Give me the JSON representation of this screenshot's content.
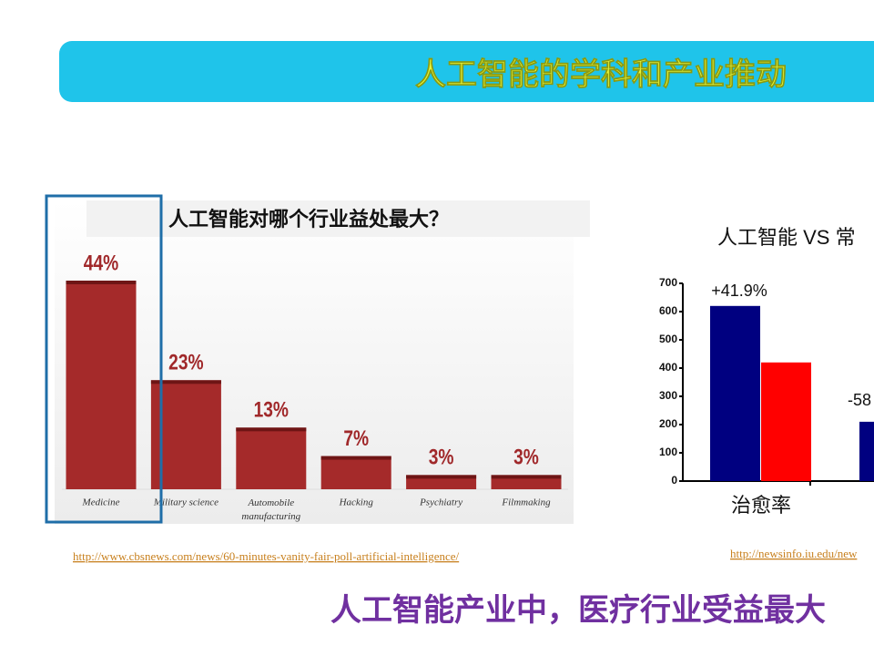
{
  "slide": {
    "title": "人工智能的学科和产业推动",
    "links": [
      "http://www.cbsnews.com/news/60-minutes-vanity-fair-poll-artificial-intelligence/",
      "http://newsinfo.iu.edu/new"
    ],
    "caption": "人工智能产业中，医疗行业受益最大"
  },
  "chart_data": [
    {
      "type": "bar",
      "title": "人工智能对哪个行业益处最大？",
      "categories": [
        "Medicine",
        "Military science",
        "Automobile manufacturing",
        "Hacking",
        "Psychiatry",
        "Filmmaking"
      ],
      "values": [
        44,
        23,
        13,
        7,
        3,
        3
      ],
      "value_labels": [
        "44%",
        "23%",
        "13%",
        "7%",
        "3%",
        "3%"
      ],
      "color": "#a52a2a"
    },
    {
      "type": "bar",
      "title": "人工智能 VS 常",
      "categories": [
        "治愈率",
        null
      ],
      "series": [
        {
          "color": "#000080",
          "values": [
            620,
            210
          ]
        },
        {
          "color": "#ff0000",
          "values": [
            420,
            null
          ]
        }
      ],
      "annotations": [
        "+41.9%",
        "-58"
      ],
      "ylim": [
        0,
        700
      ],
      "yticks": [
        0,
        100,
        200,
        300,
        400,
        500,
        600,
        700
      ]
    }
  ]
}
